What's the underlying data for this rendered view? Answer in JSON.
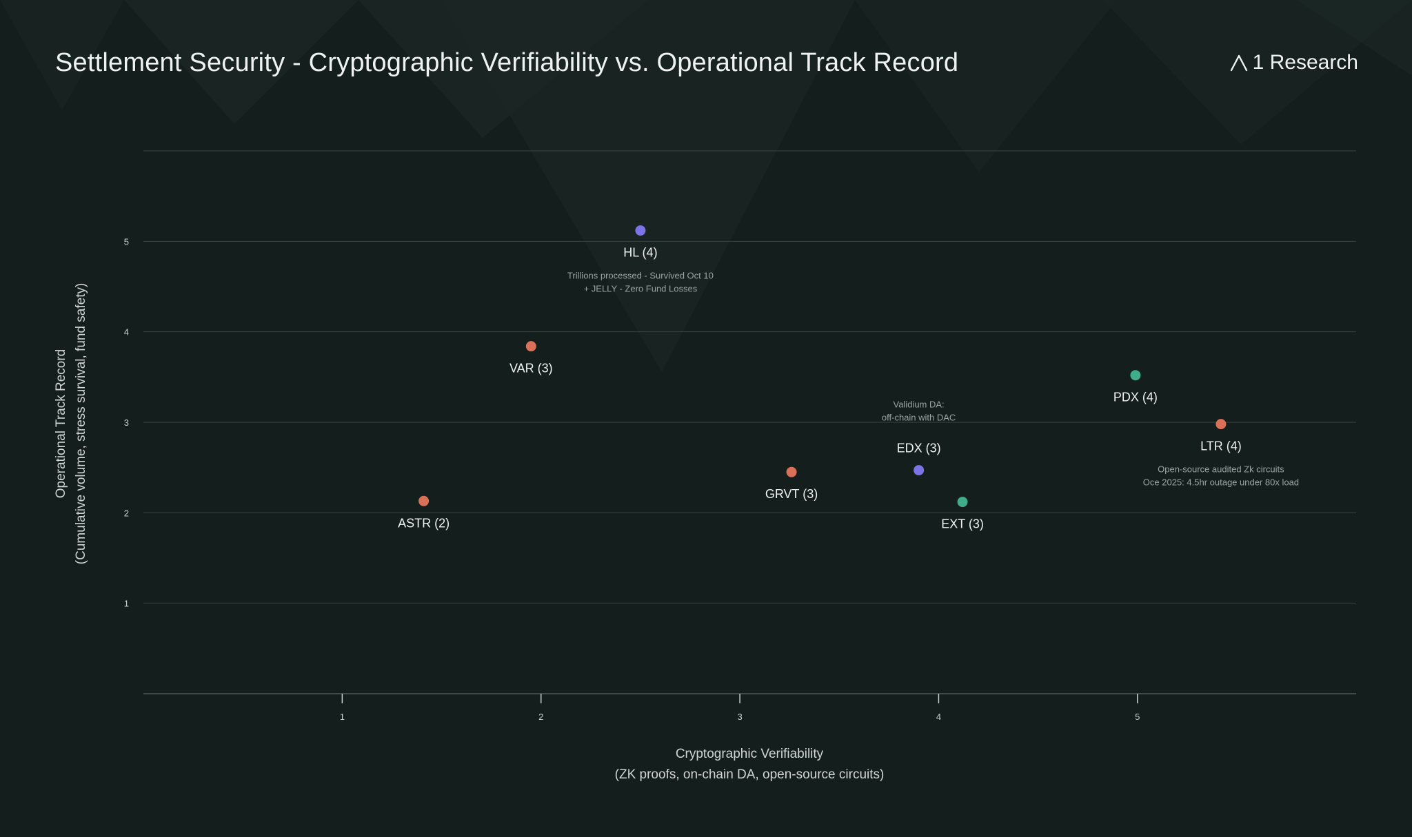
{
  "page": {
    "title": "Settlement Security - Cryptographic Verifiability vs. Operational Track Record",
    "brand": "1 Research",
    "brand_icon": "lambda-logo-icon"
  },
  "colors": {
    "background": "#141e1d",
    "grid": "#3a4543",
    "red": "#d9705a",
    "purple": "#7b73e6",
    "green": "#3fae88"
  },
  "chart_data": {
    "type": "scatter",
    "title": "Settlement Security - Cryptographic Verifiability vs. Operational Track Record",
    "xlabel": "Cryptographic Verifiability",
    "xlabel_sub": "(ZK proofs, on-chain DA, open-source circuits)",
    "ylabel": "Operational Track Record",
    "ylabel_sub": "(Cumulative volume, stress survival, fund safety)",
    "xlim": [
      0,
      6.1
    ],
    "ylim": [
      0,
      6
    ],
    "xticks": [
      "1",
      "2",
      "3",
      "4",
      "5"
    ],
    "yticks": [
      "1",
      "2",
      "3",
      "4",
      "5"
    ],
    "grid": "horizontal",
    "points": [
      {
        "label": "HL (4)",
        "x": 2.5,
        "y": 5.12,
        "color": "purple",
        "note": [
          "Trillions processed - Survived Oct 10",
          "+ JELLY - Zero Fund Losses"
        ],
        "note_position": "below"
      },
      {
        "label": "VAR (3)",
        "x": 1.95,
        "y": 3.84,
        "color": "red"
      },
      {
        "label": "ASTR (2)",
        "x": 1.41,
        "y": 2.13,
        "color": "red"
      },
      {
        "label": "GRVT (3)",
        "x": 3.26,
        "y": 2.45,
        "color": "red"
      },
      {
        "label": "EDX (3)",
        "x": 3.9,
        "y": 2.47,
        "color": "purple",
        "note": [
          "Validium DA:",
          "off-chain with DAC"
        ],
        "note_position": "above",
        "label_position": "above"
      },
      {
        "label": "EXT (3)",
        "x": 4.12,
        "y": 2.12,
        "color": "green"
      },
      {
        "label": "PDX (4)",
        "x": 4.99,
        "y": 3.52,
        "color": "green"
      },
      {
        "label": "LTR (4)",
        "x": 5.42,
        "y": 2.98,
        "color": "red",
        "note": [
          "Open-source audited Zk circuits",
          "Oce 2025: 4.5hr outage under 80x load"
        ],
        "note_position": "below"
      }
    ]
  }
}
